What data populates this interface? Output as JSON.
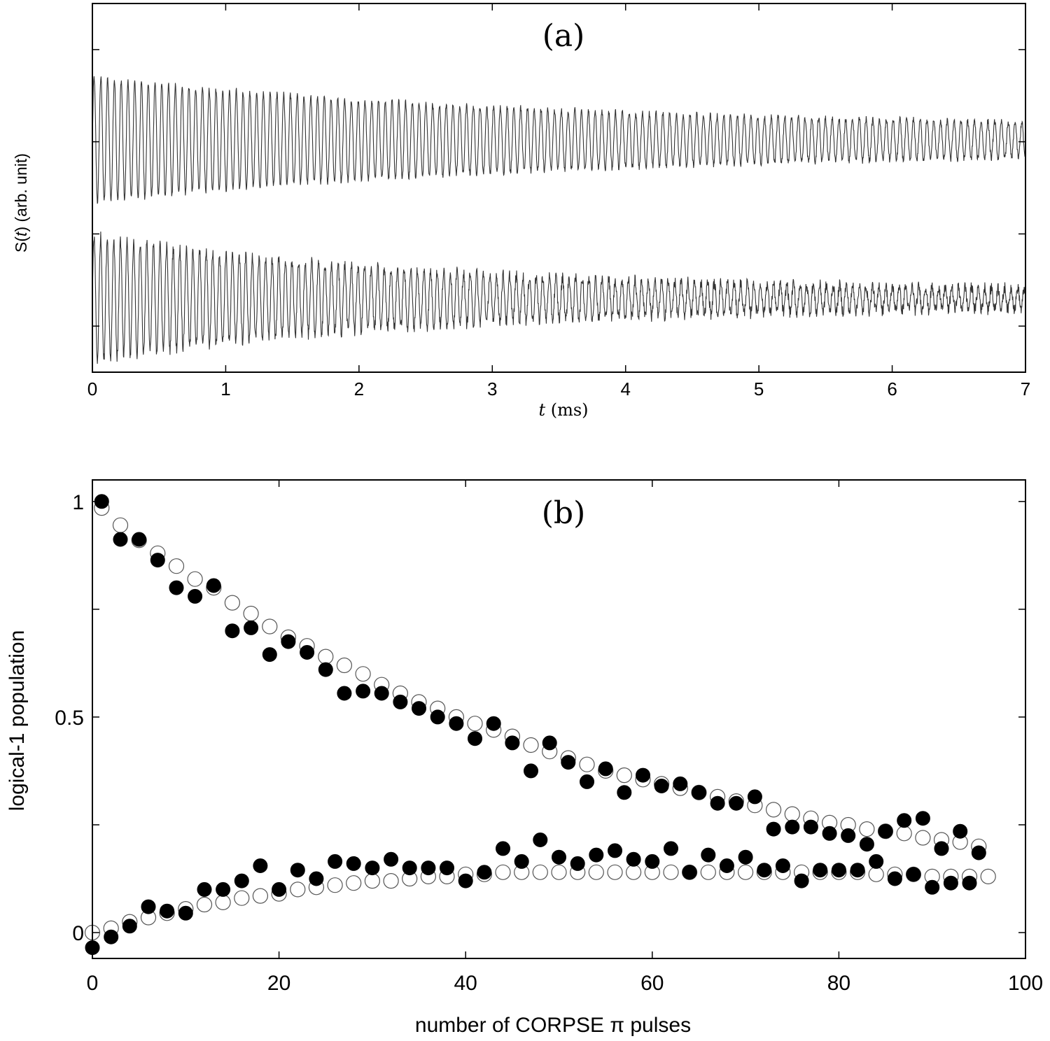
{
  "chart_data": [
    {
      "panel": "(a)",
      "type": "line",
      "xlabel_italic": "t",
      "xlabel_rest": " (ms)",
      "ylabel_prefix": "S(",
      "ylabel_var": "t",
      "ylabel_suffix": ") (arb. unit)",
      "xlim": [
        0,
        7
      ],
      "xticks": [
        0,
        1,
        2,
        3,
        4,
        5,
        6,
        7
      ],
      "yticks_count": 4,
      "series": [
        {
          "name": "upper trace",
          "center": 0.63,
          "amplitude_start": 0.17,
          "amplitude_end": 0.03,
          "decay_ms": 3.5,
          "period_ms": 0.0508
        },
        {
          "name": "lower trace",
          "center": 0.2,
          "amplitude_start": 0.17,
          "amplitude_end": 0.02,
          "decay_ms": 2.5,
          "period_ms": 0.0495
        }
      ],
      "ylim": [
        0,
        1
      ]
    },
    {
      "panel": "(b)",
      "type": "scatter",
      "xlabel": "number of CORPSE π pulses",
      "ylabel": "logical-1 population",
      "xlim": [
        0,
        100
      ],
      "ylim": [
        -0.06,
        1.05
      ],
      "xticks": [
        0,
        20,
        40,
        60,
        80,
        100
      ],
      "yticks": [
        0,
        0.5,
        1
      ],
      "ytick_labels": [
        "0",
        "0.5",
        "1"
      ],
      "series": [
        {
          "name": "filled upper",
          "marker": "filled circle",
          "x": [
            1,
            3,
            5,
            7,
            9,
            11,
            13,
            15,
            17,
            19,
            21,
            23,
            25,
            27,
            29,
            31,
            33,
            35,
            37,
            39,
            41,
            43,
            45,
            47,
            49,
            51,
            53,
            55,
            57,
            59,
            61,
            63,
            65,
            67,
            69,
            71,
            73,
            75,
            77,
            79,
            81,
            83,
            85,
            87,
            89,
            91,
            93,
            95
          ],
          "y": [
            1.0,
            0.912,
            0.912,
            0.864,
            0.8,
            0.78,
            0.805,
            0.7,
            0.707,
            0.645,
            0.675,
            0.65,
            0.61,
            0.555,
            0.56,
            0.555,
            0.535,
            0.52,
            0.5,
            0.485,
            0.45,
            0.485,
            0.44,
            0.375,
            0.44,
            0.395,
            0.35,
            0.38,
            0.325,
            0.365,
            0.34,
            0.345,
            0.325,
            0.3,
            0.3,
            0.315,
            0.24,
            0.245,
            0.245,
            0.23,
            0.225,
            0.205,
            0.235,
            0.26,
            0.265,
            0.195,
            0.235,
            0.185
          ]
        },
        {
          "name": "filled lower",
          "marker": "filled circle",
          "x": [
            0,
            2,
            4,
            6,
            8,
            10,
            12,
            14,
            16,
            18,
            20,
            22,
            24,
            26,
            28,
            30,
            32,
            34,
            36,
            38,
            40,
            42,
            44,
            46,
            48,
            50,
            52,
            54,
            56,
            58,
            60,
            62,
            64,
            66,
            68,
            70,
            72,
            74,
            76,
            78,
            80,
            82,
            84,
            86,
            88,
            90,
            92,
            94
          ],
          "y": [
            -0.035,
            -0.01,
            0.015,
            0.06,
            0.05,
            0.045,
            0.1,
            0.1,
            0.12,
            0.155,
            0.1,
            0.145,
            0.125,
            0.165,
            0.16,
            0.15,
            0.17,
            0.15,
            0.15,
            0.15,
            0.12,
            0.14,
            0.195,
            0.165,
            0.215,
            0.175,
            0.16,
            0.18,
            0.19,
            0.17,
            0.165,
            0.195,
            0.14,
            0.18,
            0.155,
            0.175,
            0.145,
            0.155,
            0.12,
            0.145,
            0.145,
            0.145,
            0.165,
            0.125,
            0.135,
            0.105,
            0.115,
            0.115
          ]
        },
        {
          "name": "open upper",
          "marker": "open circle",
          "x": [
            1,
            3,
            5,
            7,
            9,
            11,
            13,
            15,
            17,
            19,
            21,
            23,
            25,
            27,
            29,
            31,
            33,
            35,
            37,
            39,
            41,
            43,
            45,
            47,
            49,
            51,
            53,
            55,
            57,
            59,
            61,
            63,
            65,
            67,
            69,
            71,
            73,
            75,
            77,
            79,
            81,
            83,
            85,
            87,
            89,
            91,
            93,
            95
          ],
          "y": [
            0.985,
            0.945,
            0.91,
            0.88,
            0.85,
            0.82,
            0.8,
            0.765,
            0.74,
            0.71,
            0.685,
            0.665,
            0.64,
            0.62,
            0.6,
            0.575,
            0.555,
            0.535,
            0.52,
            0.5,
            0.485,
            0.47,
            0.455,
            0.435,
            0.42,
            0.405,
            0.39,
            0.375,
            0.365,
            0.355,
            0.345,
            0.335,
            0.325,
            0.315,
            0.305,
            0.295,
            0.285,
            0.275,
            0.265,
            0.255,
            0.25,
            0.24,
            0.235,
            0.23,
            0.22,
            0.215,
            0.21,
            0.2
          ]
        },
        {
          "name": "open lower",
          "marker": "open circle",
          "x": [
            0,
            2,
            4,
            6,
            8,
            10,
            12,
            14,
            16,
            18,
            20,
            22,
            24,
            26,
            28,
            30,
            32,
            34,
            36,
            38,
            40,
            42,
            44,
            46,
            48,
            50,
            52,
            54,
            56,
            58,
            60,
            62,
            64,
            66,
            68,
            70,
            72,
            74,
            76,
            78,
            80,
            82,
            84,
            86,
            88,
            90,
            92,
            94,
            96
          ],
          "y": [
            0.0,
            0.01,
            0.025,
            0.035,
            0.045,
            0.055,
            0.065,
            0.07,
            0.08,
            0.085,
            0.09,
            0.1,
            0.105,
            0.11,
            0.115,
            0.12,
            0.12,
            0.125,
            0.13,
            0.13,
            0.135,
            0.135,
            0.14,
            0.14,
            0.14,
            0.14,
            0.14,
            0.14,
            0.14,
            0.14,
            0.14,
            0.14,
            0.14,
            0.14,
            0.14,
            0.14,
            0.14,
            0.14,
            0.14,
            0.14,
            0.14,
            0.14,
            0.135,
            0.135,
            0.135,
            0.13,
            0.13,
            0.13,
            0.13
          ]
        }
      ]
    }
  ]
}
